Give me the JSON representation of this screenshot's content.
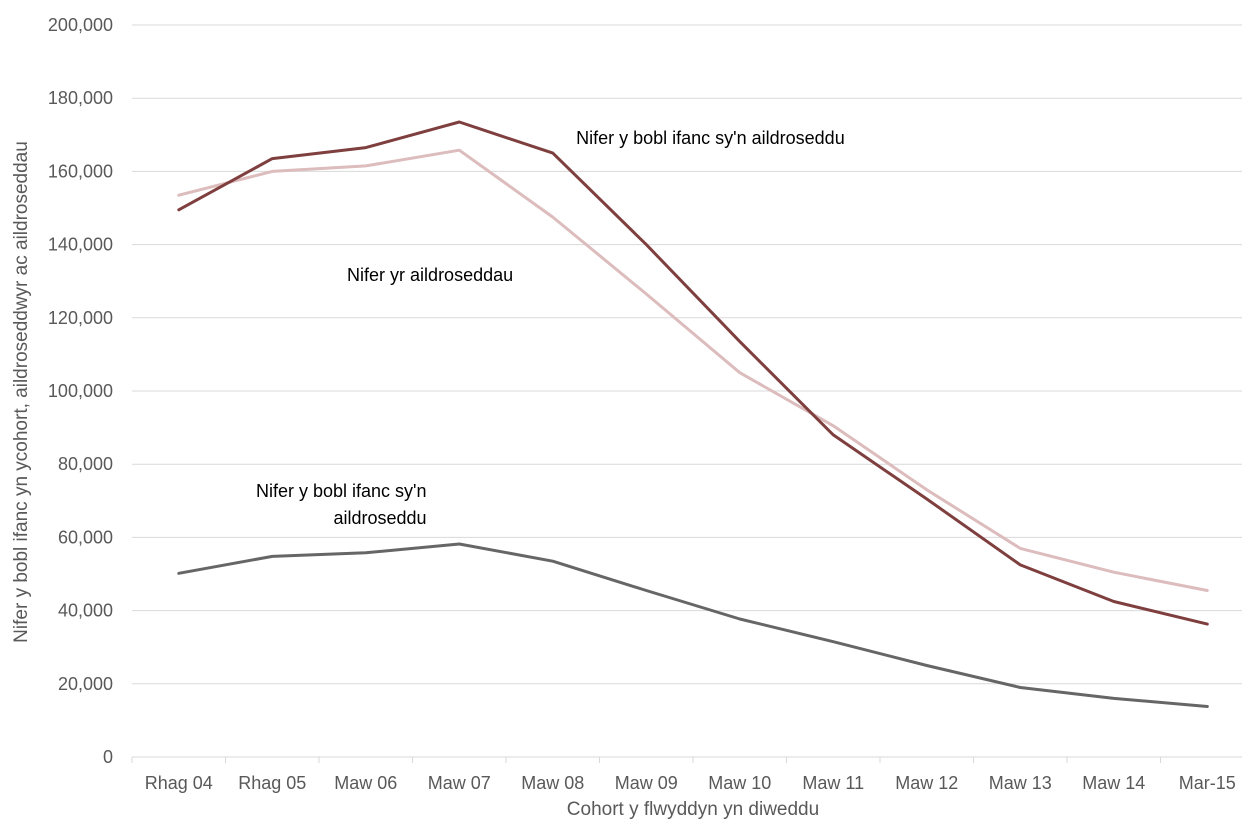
{
  "chart_data": {
    "type": "line",
    "title": "",
    "xlabel": "Cohort y flwyddyn yn diweddu",
    "ylabel": "Nifer y bobl ifanc yn ycohort, aildroseddwyr ac aildroseddau",
    "categories": [
      "Rhag 04",
      "Rhag 05",
      "Maw 06",
      "Maw 07",
      "Maw 08",
      "Maw 09",
      "Maw 10",
      "Maw 11",
      "Maw 12",
      "Maw 13",
      "Maw 14",
      "Mar-15"
    ],
    "ylim": [
      0,
      200000
    ],
    "yticks": [
      0,
      20000,
      40000,
      60000,
      80000,
      100000,
      120000,
      140000,
      160000,
      180000,
      200000
    ],
    "ytick_labels": [
      "0",
      "20,000",
      "40,000",
      "60,000",
      "80,000",
      "100,000",
      "120,000",
      "140,000",
      "160,000",
      "180,000",
      "200,000"
    ],
    "grid": "horizontal",
    "series": [
      {
        "color": "#7f3f3f",
        "values": [
          149500,
          163500,
          166500,
          173500,
          165000,
          140000,
          113500,
          88000,
          70500,
          52500,
          42500,
          36300
        ]
      },
      {
        "color": "#dcbcbc",
        "values": [
          153500,
          160000,
          161500,
          165800,
          147500,
          126500,
          105000,
          90500,
          73000,
          57000,
          50500,
          45500
        ]
      },
      {
        "color": "#666666",
        "values": [
          50200,
          54800,
          55800,
          58200,
          53500,
          45500,
          37700,
          31500,
          25000,
          19000,
          16000,
          13800
        ]
      }
    ],
    "annotations": [
      {
        "id": "a1",
        "lines": [
          "Nifer y bobl ifanc sy'n aildroseddu"
        ],
        "anchor": "start",
        "x": 4.75,
        "y": 167500
      },
      {
        "id": "a2",
        "lines": [
          "Nifer yr aildroseddau"
        ],
        "anchor": "start",
        "x": 2.3,
        "y": 130000
      },
      {
        "id": "a3",
        "lines": [
          "Nifer y bobl ifanc sy'n",
          "aildroseddu"
        ],
        "anchor": "end",
        "x": 3.15,
        "y": 71000
      }
    ]
  }
}
